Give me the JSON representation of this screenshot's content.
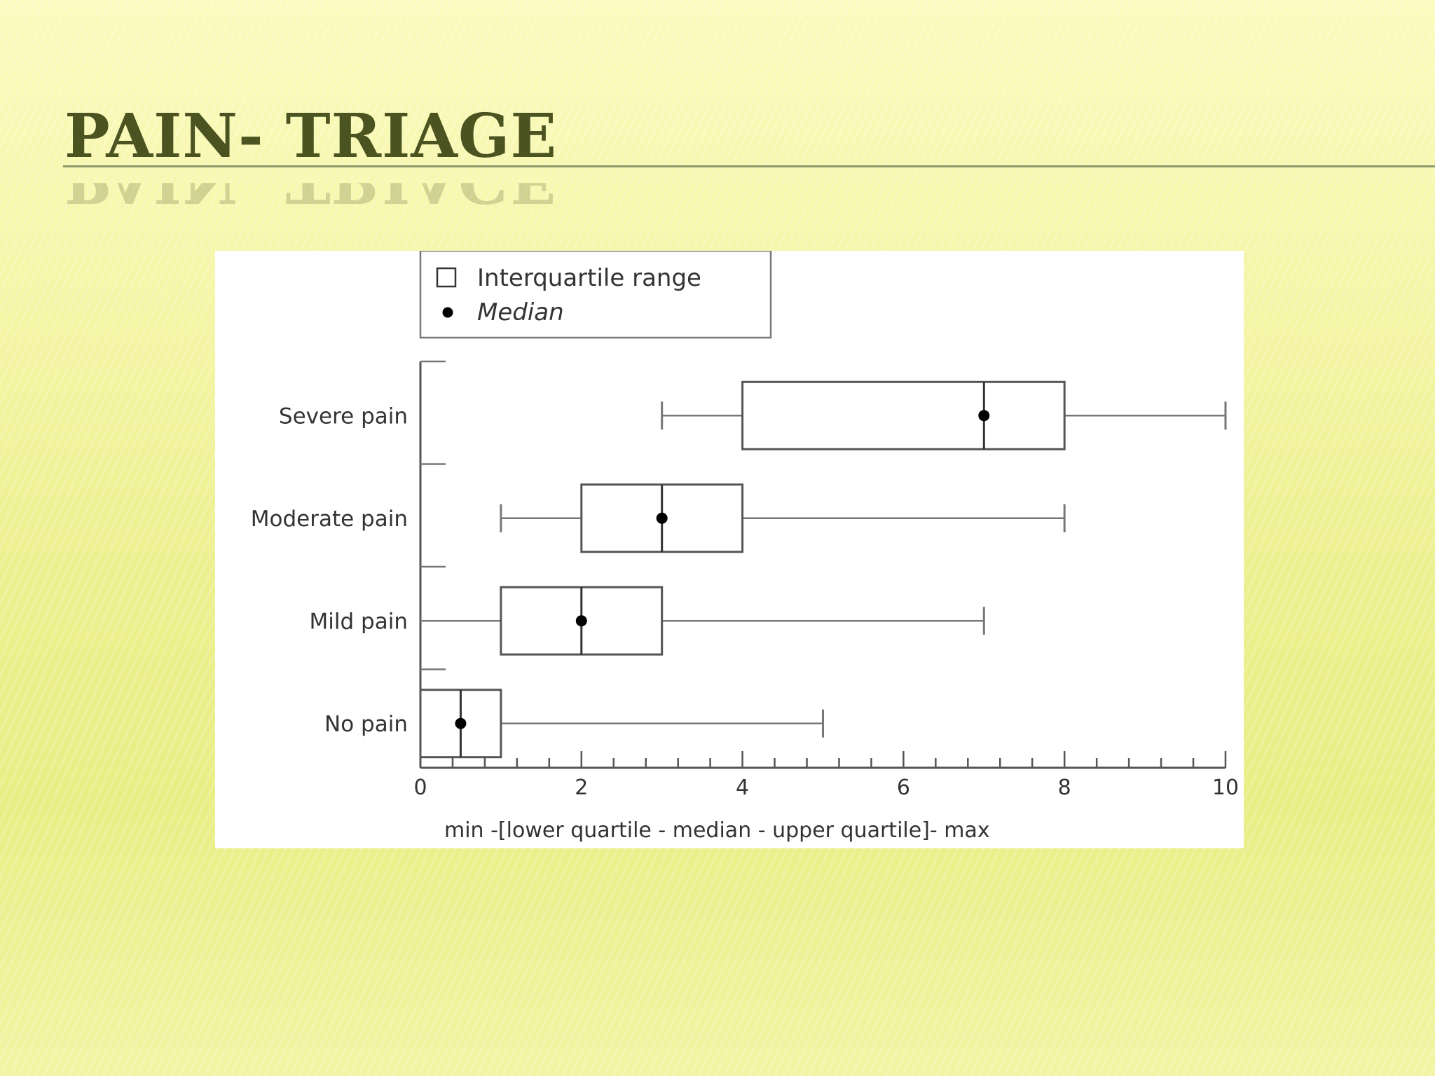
{
  "slide": {
    "title": "PAIN- TRIAGE"
  },
  "colors": {
    "title": "#4b5320",
    "rule": "#8b9a6a",
    "background_top": "#fbfbc0",
    "background_bottom": "#e9ee86",
    "chart_background": "#ffffff",
    "box_stroke": "#555555",
    "whisker_stroke": "#777777",
    "median_marker": "#000000"
  },
  "chart_data": {
    "type": "boxplot",
    "orientation": "horizontal",
    "title": "",
    "xlabel": "min -[lower quartile - median - upper quartile]- max",
    "ylabel": "",
    "xlim": [
      0,
      10
    ],
    "x_ticks": [
      "0",
      "2",
      "4",
      "6",
      "8",
      "10"
    ],
    "minor_tick_step": 0.4,
    "grid": false,
    "legend": {
      "position": "top-left",
      "entries": [
        {
          "marker": "square",
          "label": "Interquartile range"
        },
        {
          "marker": "dot",
          "label": "Median"
        }
      ]
    },
    "categories": [
      "Severe pain",
      "Moderate pain",
      "Mild pain",
      "No pain"
    ],
    "series": [
      {
        "category": "Severe pain",
        "min": 3,
        "q1": 4,
        "median": 7,
        "q3": 8,
        "max": 10
      },
      {
        "category": "Moderate pain",
        "min": 1,
        "q1": 2,
        "median": 3,
        "q3": 4,
        "max": 8
      },
      {
        "category": "Mild pain",
        "min": 0,
        "q1": 1,
        "median": 2,
        "q3": 3,
        "max": 7
      },
      {
        "category": "No pain",
        "min": 0,
        "q1": 0,
        "median": 0.5,
        "q3": 1,
        "max": 5
      }
    ]
  }
}
